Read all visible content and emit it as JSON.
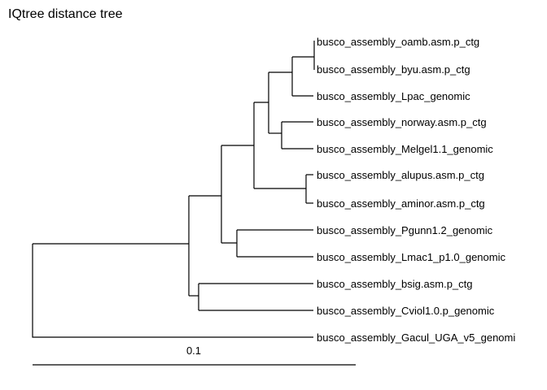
{
  "title": "IQtree distance tree",
  "scale_label": "0.1",
  "tips": [
    "busco_assembly_oamb.asm.p_ctg",
    "busco_assembly_byu.asm.p_ctg",
    "busco_assembly_Lpac_genomic",
    "busco_assembly_norway.asm.p_ctg",
    "busco_assembly_Melgel1.1_genomic",
    "busco_assembly_alupus.asm.p_ctg",
    "busco_assembly_aminor.asm.p_ctg",
    "busco_assembly_Pgunn1.2_genomic",
    "busco_assembly_Lmac1_p1.0_genomic",
    "busco_assembly_bsig.asm.p_ctg",
    "busco_assembly_Cviol1.0.p_genomic",
    "busco_assembly_Gacul_UGA_v5_genomi"
  ]
}
